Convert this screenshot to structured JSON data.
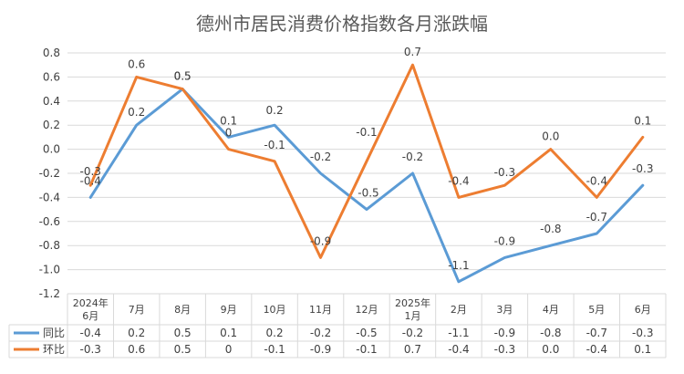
{
  "chart_data": {
    "type": "line",
    "title": "德州市居民消费价格指数各月涨跌幅",
    "categories": [
      [
        "2024年",
        "6月"
      ],
      [
        "7月"
      ],
      [
        "8月"
      ],
      [
        "9月"
      ],
      [
        "10月"
      ],
      [
        "11月"
      ],
      [
        "12月"
      ],
      [
        "2025年",
        "1月"
      ],
      [
        "2月"
      ],
      [
        "3月"
      ],
      [
        "4月"
      ],
      [
        "5月"
      ],
      [
        "6月"
      ]
    ],
    "series": [
      {
        "name": "同比",
        "color": "#5b9bd5",
        "values": [
          -0.4,
          0.2,
          0.5,
          0.1,
          0.2,
          -0.2,
          -0.5,
          -0.2,
          -1.1,
          -0.9,
          -0.8,
          -0.7,
          -0.3
        ],
        "labels": [
          "-0.4",
          "0.2",
          "0.5",
          "0.1",
          "0.2",
          "-0.2",
          "-0.5",
          "-0.2",
          "-1.1",
          "-0.9",
          "-0.8",
          "-0.7",
          "-0.3"
        ]
      },
      {
        "name": "环比",
        "color": "#ed7d31",
        "values": [
          -0.3,
          0.6,
          0.5,
          0,
          -0.1,
          -0.9,
          -0.1,
          0.7,
          -0.4,
          -0.3,
          0.0,
          -0.4,
          0.1
        ],
        "labels": [
          "-0.3",
          "0.6",
          "0.5",
          "0",
          "-0.1",
          "-0.9",
          "-0.1",
          "0.7",
          "-0.4",
          "-0.3",
          "0.0",
          "-0.4",
          "0.1"
        ]
      }
    ],
    "y_ticks": [
      "0.8",
      "0.6",
      "0.4",
      "0.2",
      "0.0",
      "-0.2",
      "-0.4",
      "-0.6",
      "-0.8",
      "-1.0",
      "-1.2"
    ],
    "ylim": [
      -1.2,
      0.8
    ],
    "grid": true,
    "legend": "data-table"
  }
}
